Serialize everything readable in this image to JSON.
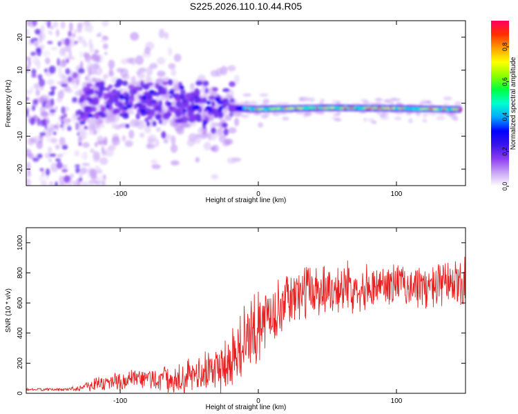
{
  "figure_title": "S225.2026.110.10.44.R05",
  "colors": {
    "snr_line": "#e82020",
    "frame": "#000000",
    "background": "#ffffff"
  },
  "chart_data": [
    {
      "type": "heatmap",
      "panel": "top",
      "xlabel": "Height of straight line (km)",
      "ylabel": "Frequency (Hz)",
      "xlim": [
        -168,
        150
      ],
      "ylim": [
        -25,
        25
      ],
      "xticks": [
        -100,
        0,
        100
      ],
      "yticks": [
        -20,
        -10,
        0,
        10,
        20
      ],
      "colorbar": {
        "label": "Normalized spectral amplitude",
        "range": [
          0,
          0.95
        ],
        "ticks": [
          0.0,
          0.2,
          0.4,
          0.6,
          0.8
        ],
        "stops": [
          "#ffffff",
          "#c9a4f5",
          "#8c3cf2",
          "#3a14ea",
          "#0000ff",
          "#00a8ff",
          "#00ffd0",
          "#00ff40",
          "#8cff00",
          "#ffff00",
          "#ffa000",
          "#ff3000",
          "#ff0060"
        ]
      },
      "ridge": [
        {
          "x": -168,
          "f": 0
        },
        {
          "x": -100,
          "f": 0.2
        },
        {
          "x": -50,
          "f": -0.5
        },
        {
          "x": -20,
          "f": -1.5
        },
        {
          "x": 0,
          "f": -1.8
        },
        {
          "x": 50,
          "f": -1.4
        },
        {
          "x": 100,
          "f": -1.6
        },
        {
          "x": 145,
          "f": -1.9
        }
      ]
    },
    {
      "type": "line",
      "panel": "bottom",
      "xlabel": "Height of straight line (km)",
      "ylabel": "SNR (10 * v/v)",
      "xlim": [
        -168,
        150
      ],
      "ylim": [
        0,
        1100
      ],
      "xticks": [
        -100,
        0,
        100
      ],
      "yticks": [
        0,
        200,
        400,
        600,
        800,
        1000
      ],
      "series": [
        {
          "name": "SNR",
          "envelope": {
            "x": [
              -168,
              -140,
              -130,
              -120,
              -100,
              -80,
              -60,
              -40,
              -30,
              -20,
              -10,
              0,
              10,
              20,
              30,
              40,
              50,
              60,
              80,
              100,
              120,
              140,
              150
            ],
            "mean": [
              25,
              25,
              35,
              60,
              80,
              95,
              100,
              125,
              170,
              230,
              330,
              440,
              540,
              610,
              660,
              690,
              700,
              700,
              710,
              730,
              700,
              720,
              730
            ],
            "amp": [
              8,
              10,
              20,
              50,
              70,
              80,
              100,
              130,
              190,
              240,
              260,
              240,
              200,
              170,
              180,
              190,
              180,
              170,
              150,
              140,
              150,
              170,
              180
            ]
          }
        }
      ]
    }
  ]
}
